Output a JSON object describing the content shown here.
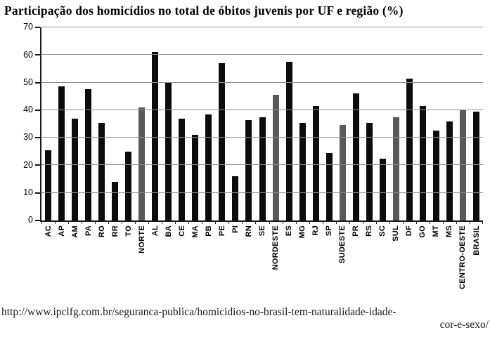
{
  "title": "Participação dos homicídios no total de óbitos juvenis por UF e região (%)",
  "source": {
    "line1": "http://www.ipclfg.com.br/seguranca-publica/homicidios-no-brasil-tem-naturalidade-idade-",
    "line2": "cor-e-sexo/"
  },
  "chart_data": {
    "type": "bar",
    "title": "Participação dos homicídios no total de óbitos juvenis por UF e região (%)",
    "categories": [
      "AC",
      "AP",
      "AM",
      "PA",
      "RO",
      "RR",
      "TO",
      "NORTE",
      "AL",
      "BA",
      "CE",
      "MA",
      "PB",
      "PE",
      "PI",
      "RN",
      "SE",
      "NORDESTE",
      "ES",
      "MG",
      "RJ",
      "SP",
      "SUDESTE",
      "PR",
      "RS",
      "SC",
      "SUL",
      "DF",
      "GO",
      "MT",
      "MS",
      "CENTRO-OESTE",
      "BRASIL"
    ],
    "values": [
      25.5,
      48.5,
      37,
      47.5,
      35.5,
      14,
      25,
      41,
      61,
      50,
      37,
      31,
      38.5,
      57,
      16,
      36.5,
      37.5,
      45.5,
      57.5,
      35.5,
      41.5,
      24.5,
      34.5,
      46,
      35.5,
      22.5,
      37.5,
      51.5,
      41.5,
      32.5,
      36,
      40,
      39.5
    ],
    "region_categories": [
      "NORTE",
      "NORDESTE",
      "SUDESTE",
      "SUL",
      "CENTRO-OESTE"
    ],
    "xlabel": "",
    "ylabel": "",
    "ylim": [
      0,
      70
    ],
    "ytick_step": 10,
    "grid": true,
    "legend": "none",
    "colors": {
      "state_bar": "#0c0c0c",
      "region_bar": "#595959",
      "gridline": "#8f8f8f",
      "axis": "#1a1a1a",
      "background": "#ffffff"
    }
  }
}
